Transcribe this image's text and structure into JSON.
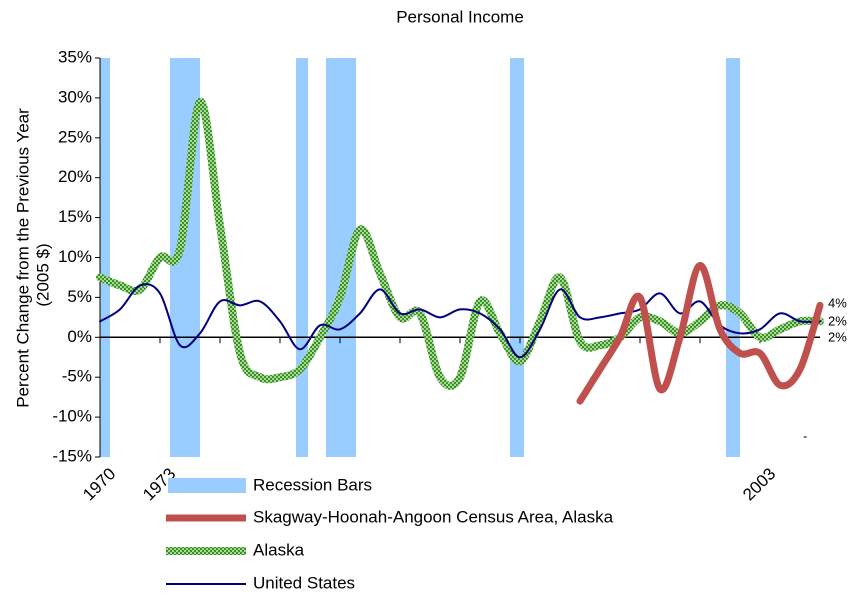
{
  "chart_data": {
    "type": "line",
    "title": "Personal Income",
    "ylabel": "Percent Change from the Previous Year",
    "ylabel2": "(2005 $)",
    "xlim": [
      1970,
      2006
    ],
    "xticks": [
      1970,
      1973,
      2003
    ],
    "xminor_ticks": [
      1976,
      1979,
      1982,
      1985,
      1988,
      1991,
      1994,
      1997,
      2000
    ],
    "ylim": [
      -15,
      35
    ],
    "yticks": [
      {
        "value": -15,
        "label": "-15%"
      },
      {
        "value": -10,
        "label": "-10%"
      },
      {
        "value": -5,
        "label": "-5%"
      },
      {
        "value": 0,
        "label": "0%"
      },
      {
        "value": 5,
        "label": "5%"
      },
      {
        "value": 10,
        "label": "10%"
      },
      {
        "value": 15,
        "label": "15%"
      },
      {
        "value": 20,
        "label": "20%"
      },
      {
        "value": 25,
        "label": "25%"
      },
      {
        "value": 30,
        "label": "30%"
      },
      {
        "value": 35,
        "label": "35%"
      }
    ],
    "recessions": {
      "name": "Recession Bars",
      "color": "#99ccff",
      "spans": [
        [
          1970,
          1970.5
        ],
        [
          1973.5,
          1975
        ],
        [
          1979.8,
          1980.4
        ],
        [
          1981.3,
          1982.8
        ],
        [
          1990.5,
          1991.2
        ],
        [
          2001.3,
          2002
        ]
      ]
    },
    "x": [
      1970,
      1971,
      1972,
      1973,
      1974,
      1975,
      1976,
      1977,
      1978,
      1979,
      1980,
      1981,
      1982,
      1983,
      1984,
      1985,
      1986,
      1987,
      1988,
      1989,
      1990,
      1991,
      1992,
      1993,
      1994,
      1995,
      1996,
      1997,
      1998,
      1999,
      2000,
      2001,
      2002,
      2003,
      2004,
      2005,
      2006
    ],
    "series": [
      {
        "name": "Skagway-Hoonah-Angoon Census Area, Alaska",
        "color": "#c0504d",
        "style": "thick",
        "values": [
          null,
          null,
          null,
          null,
          null,
          null,
          null,
          null,
          null,
          null,
          null,
          null,
          null,
          null,
          null,
          null,
          null,
          null,
          null,
          null,
          null,
          null,
          null,
          null,
          -8,
          -4,
          0,
          5,
          -6.5,
          0,
          9,
          1,
          -2,
          -2,
          -6,
          -4,
          4
        ],
        "end_label": "4%"
      },
      {
        "name": "Alaska",
        "color": "#8fce7a",
        "style": "checker",
        "values": [
          7.5,
          6.5,
          6,
          10,
          11,
          29.5,
          14,
          -2,
          -5,
          -5,
          -4,
          0,
          5,
          13.5,
          8,
          2.5,
          3,
          -5,
          -5,
          4.5,
          0.5,
          -3,
          2,
          7.5,
          -0.5,
          -1,
          0,
          2.5,
          2,
          0.5,
          2,
          4,
          3,
          0,
          1,
          2,
          2
        ],
        "end_label": "2%"
      },
      {
        "name": "United States",
        "color": "#000080",
        "style": "thin",
        "values": [
          2,
          3.5,
          6.5,
          5.5,
          -1,
          0.5,
          4.5,
          4,
          4.5,
          2,
          -1.5,
          1.5,
          1,
          3,
          6,
          3,
          3.5,
          2.5,
          3.5,
          3,
          1,
          -2.5,
          1,
          6,
          2.5,
          2.5,
          3,
          3.5,
          5.5,
          3,
          4.5,
          1.5,
          0.5,
          1,
          3,
          2,
          2
        ],
        "end_label": "2%"
      }
    ],
    "annotation": "-"
  }
}
